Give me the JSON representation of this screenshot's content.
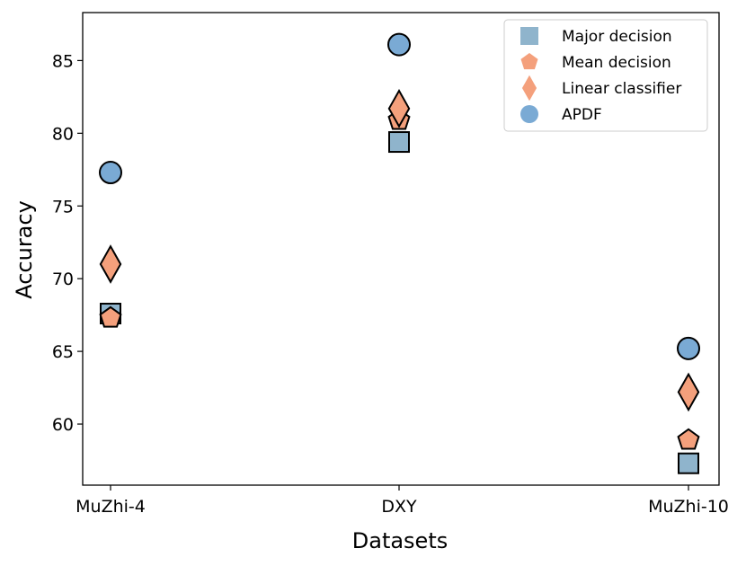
{
  "chart_data": {
    "type": "scatter",
    "xlabel": "Datasets",
    "ylabel": "Accuracy",
    "categories": [
      "MuZhi-4",
      "DXY",
      "MuZhi-10"
    ],
    "ylim": [
      55.8,
      88.3
    ],
    "yticks": [
      60,
      65,
      70,
      75,
      80,
      85
    ],
    "grid": false,
    "legend_position": "top-right",
    "series": [
      {
        "name": "Major decision",
        "marker": "square",
        "color": "#8fb4cc",
        "values": [
          67.6,
          79.4,
          57.3
        ]
      },
      {
        "name": "Mean decision",
        "marker": "pentagon",
        "color": "#f4a07c",
        "values": [
          67.3,
          80.9,
          58.9
        ]
      },
      {
        "name": "Linear classifier",
        "marker": "diamond",
        "color": "#f4a07c",
        "values": [
          71.0,
          81.7,
          62.2
        ]
      },
      {
        "name": "APDF",
        "marker": "circle",
        "color": "#7aaad4",
        "values": [
          77.3,
          86.1,
          65.2
        ]
      }
    ]
  }
}
